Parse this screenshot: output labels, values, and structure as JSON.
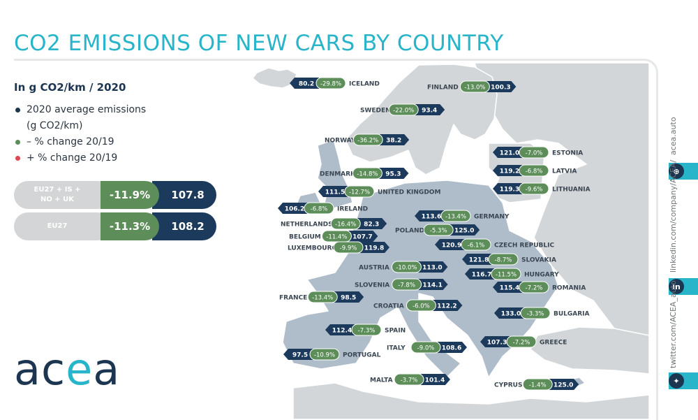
{
  "title": "CO2 EMISSIONS OF NEW CARS BY COUNTRY",
  "subtitle": "In g CO2/km / 2020",
  "legend": [
    {
      "label": "2020 average emissions\n(g CO2/km)",
      "color": "#1c3550"
    },
    {
      "label": "– % change 20/19",
      "color": "#5d8e5a"
    },
    {
      "label": "+ % change 20/19",
      "color": "#e0464f"
    }
  ],
  "summary": [
    {
      "label": "EU27 + IS +\nNO + UK",
      "change": "-11.9%",
      "value": "107.8"
    },
    {
      "label": "EU27",
      "change": "-11.3%",
      "value": "108.2"
    }
  ],
  "colors": {
    "navy": "#1c3a5c",
    "green": "#5d8e5a",
    "accent": "#29b5c9",
    "map_grey": "#d3d6d9",
    "map_highlight": "#afbcca"
  },
  "countries": [
    {
      "name": "ICELAND",
      "value": "80.2",
      "change": "-29.8%",
      "layout": "vcn"
    },
    {
      "name": "FINLAND",
      "value": "100.3",
      "change": "-13.0%",
      "layout": "ncv"
    },
    {
      "name": "SWEDEN",
      "value": "93.4",
      "change": "-22.0%",
      "layout": "ncv"
    },
    {
      "name": "NORWAY",
      "value": "38.2",
      "change": "-36.2%",
      "layout": "ncv"
    },
    {
      "name": "ESTONIA",
      "value": "121.0",
      "change": "-7.0%",
      "layout": "vcn"
    },
    {
      "name": "LATVIA",
      "value": "119.2",
      "change": "-6.8%",
      "layout": "vcn"
    },
    {
      "name": "DENMARK",
      "value": "95.3",
      "change": "-14.8%",
      "layout": "ncv"
    },
    {
      "name": "UNITED KINGDOM",
      "value": "111.5",
      "change": "-12.7%",
      "layout": "vcn"
    },
    {
      "name": "LITHUANIA",
      "value": "119.3",
      "change": "-9.6%",
      "layout": "vcn"
    },
    {
      "name": "IRELAND",
      "value": "106.2",
      "change": "-6.8%",
      "layout": "vcn"
    },
    {
      "name": "GERMANY",
      "value": "113.6",
      "change": "-13.4%",
      "layout": "vcn"
    },
    {
      "name": "NETHERLANDS",
      "value": "82.3",
      "change": "-16.4%",
      "layout": "ncv"
    },
    {
      "name": "POLAND",
      "value": "125.0",
      "change": "-5.3%",
      "layout": "ncv"
    },
    {
      "name": "BELGIUM",
      "value": "107.7",
      "change": "-11.4%",
      "layout": "ncv"
    },
    {
      "name": "CZECH REPUBLIC",
      "value": "120.9",
      "change": "-6.1%",
      "layout": "vcn"
    },
    {
      "name": "LUXEMBOURG",
      "value": "119.8",
      "change": "-9.9%",
      "layout": "ncv"
    },
    {
      "name": "SLOVAKIA",
      "value": "121.8",
      "change": "-8.7%",
      "layout": "vcn"
    },
    {
      "name": "AUSTRIA",
      "value": "113.0",
      "change": "-10.0%",
      "layout": "ncv"
    },
    {
      "name": "HUNGARY",
      "value": "116.7",
      "change": "-11.5%",
      "layout": "vcn"
    },
    {
      "name": "SLOVENIA",
      "value": "114.1",
      "change": "-7.8%",
      "layout": "ncv"
    },
    {
      "name": "ROMANIA",
      "value": "115.4",
      "change": "-7.2%",
      "layout": "vcn"
    },
    {
      "name": "FRANCE",
      "value": "98.5",
      "change": "-13.4%",
      "layout": "ncv"
    },
    {
      "name": "CROATIA",
      "value": "112.2",
      "change": "-6.0%",
      "layout": "ncv"
    },
    {
      "name": "BULGARIA",
      "value": "133.0",
      "change": "-3.3%",
      "layout": "vcn"
    },
    {
      "name": "SPAIN",
      "value": "112.4",
      "change": "-7.3%",
      "layout": "vcn"
    },
    {
      "name": "ITALY",
      "value": "108.6",
      "change": "-9.0%",
      "layout": "ncv"
    },
    {
      "name": "GREECE",
      "value": "107.3",
      "change": "-7.2%",
      "layout": "vcn"
    },
    {
      "name": "PORTUGAL",
      "value": "97.5",
      "change": "-10.9%",
      "layout": "vcn"
    },
    {
      "name": "MALTA",
      "value": "101.4",
      "change": "-3.7%",
      "layout": "ncv"
    },
    {
      "name": "CYPRUS",
      "value": "125.0",
      "change": "-1.4%",
      "layout": "ncv"
    }
  ],
  "social": {
    "website": "acea.auto",
    "linkedin": "linkedin.com/company/ACEA/",
    "twitter": "twitter.com/ACEA_auto"
  },
  "logo": {
    "text_left": "ac",
    "text_e": "e",
    "text_right": "a"
  }
}
